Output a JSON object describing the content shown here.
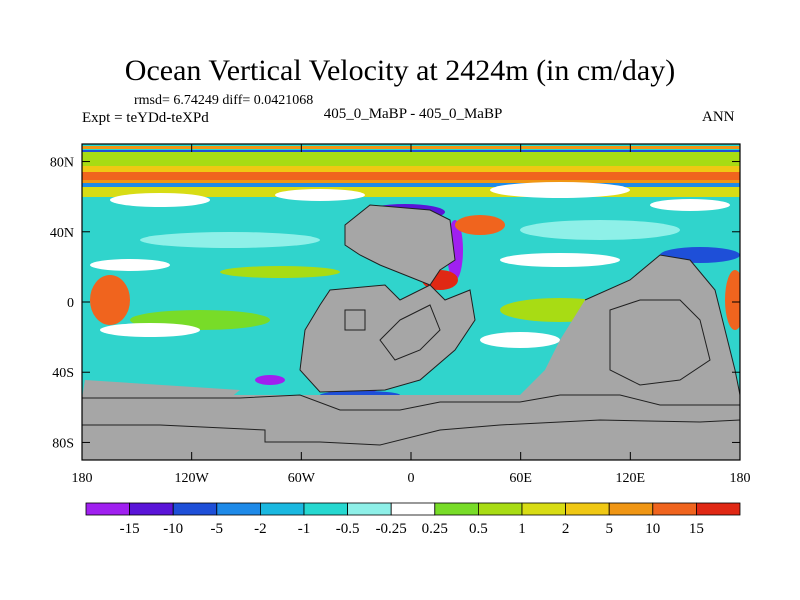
{
  "chart_data": {
    "type": "heatmap",
    "title": "Ocean Vertical Velocity at 2424m (in cm/day)",
    "stats_line": "rmsd= 6.74249 diff= 0.0421068",
    "left_label": "Expt = teYDd-teXPd",
    "center_label": "405_0_MaBP - 405_0_MaBP",
    "right_label": "ANN",
    "x_axis": {
      "range": [
        -180,
        180
      ],
      "ticks": [
        -180,
        -120,
        -60,
        0,
        60,
        120,
        180
      ],
      "tick_labels": [
        "180",
        "120W",
        "60W",
        "0",
        "60E",
        "120E",
        "180"
      ]
    },
    "y_axis": {
      "range": [
        -90,
        90
      ],
      "ticks": [
        80,
        40,
        0,
        -40,
        -80
      ],
      "tick_labels": [
        "80N",
        "40N",
        "0",
        "40S",
        "80S"
      ]
    },
    "colorbar": {
      "colors": [
        "#a020f0",
        "#5a14d8",
        "#1e4fd8",
        "#1e8ae8",
        "#1ab8e0",
        "#26d8d0",
        "#8ef0e8",
        "#ffffff",
        "#78dc28",
        "#a8dc14",
        "#d8dc14",
        "#f0c814",
        "#f09614",
        "#f0641e",
        "#e02814"
      ],
      "levels": [
        -15,
        -10,
        -5,
        -2,
        -1,
        -0.5,
        -0.25,
        0.25,
        0.5,
        1,
        2,
        5,
        10,
        15
      ],
      "level_labels": [
        "-15",
        "-10",
        "-5",
        "-2",
        "-1",
        "-0.5",
        "-0.25",
        "0.25",
        "0.5",
        "1",
        "2",
        "5",
        "10",
        "15"
      ]
    },
    "land_color": "#a6a6a6",
    "grid": false
  }
}
